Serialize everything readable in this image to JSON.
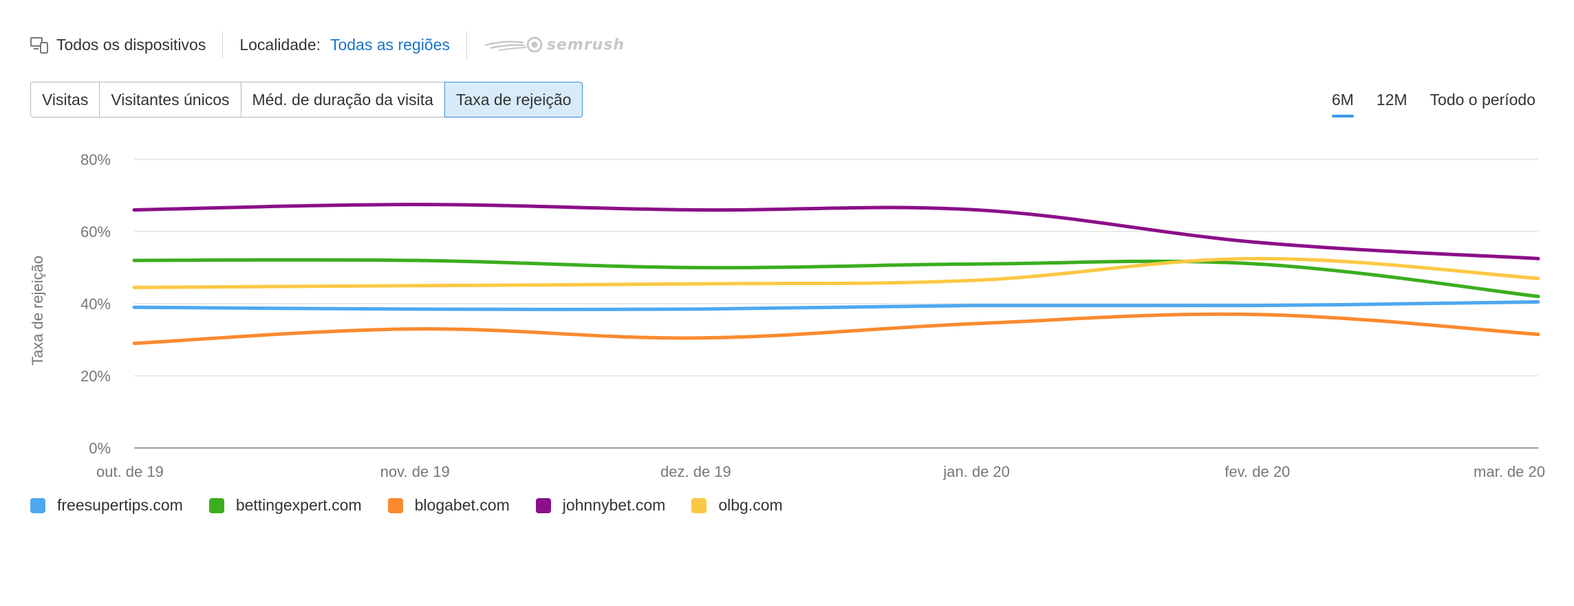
{
  "header": {
    "devices_label": "Todos os dispositivos",
    "location_label": "Localidade:",
    "location_value": "Todas as regiões",
    "brand": "semrush"
  },
  "metric_tabs": [
    {
      "label": "Visitas",
      "active": false
    },
    {
      "label": "Visitantes únicos",
      "active": false
    },
    {
      "label": "Méd. de duração da visita",
      "active": false
    },
    {
      "label": "Taxa de rejeição",
      "active": true
    }
  ],
  "periods": [
    {
      "label": "6M",
      "active": true
    },
    {
      "label": "12M",
      "active": false
    },
    {
      "label": "Todo o período",
      "active": false
    }
  ],
  "chart_data": {
    "type": "line",
    "ylabel": "Taxa de rejeição",
    "ylim": [
      0,
      80
    ],
    "yticks": [
      "80%",
      "60%",
      "40%",
      "20%",
      "0%"
    ],
    "ytick_values": [
      80,
      60,
      40,
      20,
      0
    ],
    "categories": [
      "out. de 19",
      "nov. de 19",
      "dez. de 19",
      "jan. de 20",
      "fev. de 20",
      "mar. de 20"
    ],
    "grid": true,
    "legend_position": "bottom-left",
    "series": [
      {
        "name": "freesupertips.com",
        "color": "#4ea8ef",
        "values": [
          39,
          38.5,
          38.5,
          39.5,
          39.5,
          40.5
        ]
      },
      {
        "name": "bettingexpert.com",
        "color": "#3bae1e",
        "values": [
          52,
          52,
          50,
          51,
          51,
          42
        ]
      },
      {
        "name": "blogabet.com",
        "color": "#fb8a2e",
        "values": [
          29,
          33,
          30.5,
          34.5,
          37,
          31.5
        ]
      },
      {
        "name": "johnnybet.com",
        "color": "#8b0f88",
        "values": [
          66,
          67.5,
          66,
          66,
          57,
          52.5
        ]
      },
      {
        "name": "olbg.com",
        "color": "#fcc844",
        "values": [
          44.5,
          45,
          45.5,
          46.5,
          52.5,
          47
        ]
      }
    ]
  }
}
